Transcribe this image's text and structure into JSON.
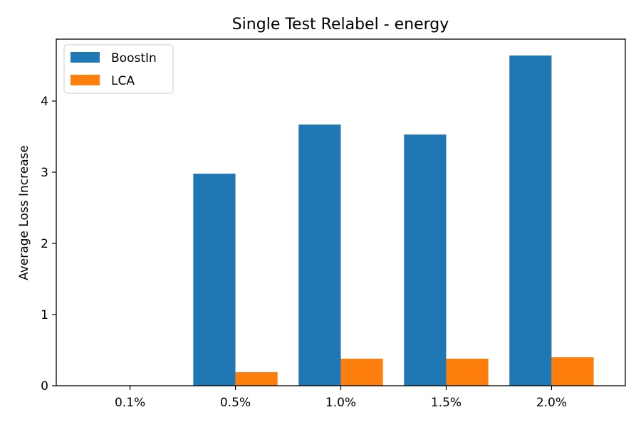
{
  "chart_data": {
    "type": "bar",
    "title": "Single Test Relabel - energy",
    "xlabel": "",
    "ylabel": "Average Loss Increase",
    "categories": [
      "0.1%",
      "0.5%",
      "1.0%",
      "1.5%",
      "2.0%"
    ],
    "series": [
      {
        "name": "BoostIn",
        "color": "#1f77b4",
        "values": [
          0.0,
          2.98,
          3.67,
          3.53,
          4.64
        ]
      },
      {
        "name": "LCA",
        "color": "#ff7f0e",
        "values": [
          0.0,
          0.19,
          0.38,
          0.38,
          0.4
        ]
      }
    ],
    "ylim": [
      0,
      4.87
    ],
    "yticks": [
      0,
      1,
      2,
      3,
      4
    ],
    "grid": false,
    "legend_position": "top-left"
  }
}
